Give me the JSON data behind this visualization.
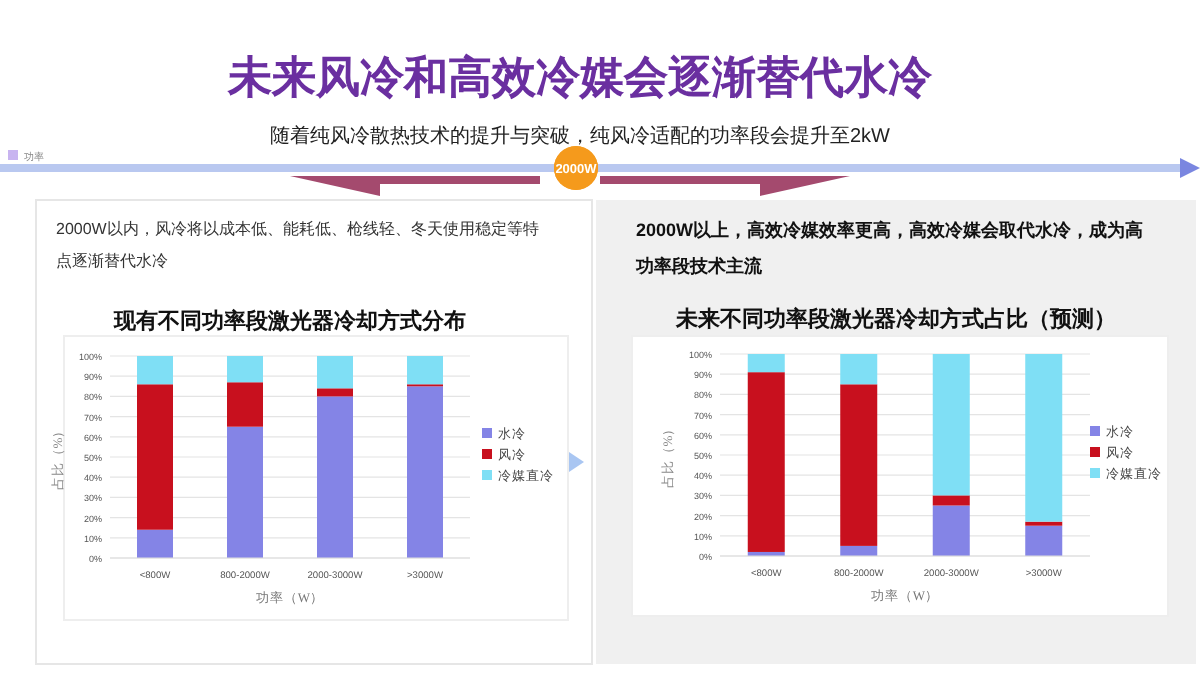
{
  "chart_data": [
    {
      "type": "other",
      "title": "未来风冷和高效冷媒会逐渐替代水冷",
      "subtitle": "随着纯风冷散热技术的提升与突破，纯风冷适配的功率段会提升至2kW",
      "annotations": [
        "功率",
        "2000W",
        "2000W以内，风冷将以成本低、能耗低、枪线轻、冬天使用稳定等特点逐渐替代水冷",
        "2000W以上，高效冷媒效率更高，高效冷媒会取代水冷，成为高功率段技术主流"
      ]
    },
    {
      "type": "bar",
      "stacked": true,
      "title": "现有不同功率段激光器冷却方式分布",
      "categories": [
        "<800W",
        "800-2000W",
        "2000-3000W",
        ">3000W"
      ],
      "series": [
        {
          "name": "水冷",
          "color": "#8484e6",
          "values": [
            14,
            65,
            80,
            85
          ]
        },
        {
          "name": "风冷",
          "color": "#c8101e",
          "values": [
            72,
            22,
            4,
            1
          ]
        },
        {
          "name": "冷媒直冷",
          "color": "#7fdff5",
          "values": [
            14,
            13,
            16,
            14
          ]
        }
      ],
      "xlabel": "功率（W）",
      "ylabel": "占比（%）",
      "ylim": [
        0,
        100
      ],
      "yticks": [
        {
          "value": 0,
          "label": "0%"
        },
        {
          "value": 10,
          "label": "10%"
        },
        {
          "value": 20,
          "label": "20%"
        },
        {
          "value": 30,
          "label": "30%"
        },
        {
          "value": 40,
          "label": "40%"
        },
        {
          "value": 50,
          "label": "50%"
        },
        {
          "value": 60,
          "label": "60%"
        },
        {
          "value": 70,
          "label": "70%"
        },
        {
          "value": 80,
          "label": "80%"
        },
        {
          "value": 90,
          "label": "90%"
        },
        {
          "value": 100,
          "label": "100%"
        }
      ],
      "grid": "y",
      "legend": "right"
    },
    {
      "type": "bar",
      "stacked": true,
      "title": "未来不同功率段激光器冷却方式占比（预测）",
      "categories": [
        "<800W",
        "800-2000W",
        "2000-3000W",
        ">3000W"
      ],
      "series": [
        {
          "name": "水冷",
          "color": "#8484e6",
          "values": [
            2,
            5,
            25,
            15
          ]
        },
        {
          "name": "风冷",
          "color": "#c8101e",
          "values": [
            89,
            80,
            5,
            2
          ]
        },
        {
          "name": "冷媒直冷",
          "color": "#7fdff5",
          "values": [
            9,
            15,
            70,
            83
          ]
        }
      ],
      "xlabel": "功率（W）",
      "ylabel": "占比（%）",
      "ylim": [
        0,
        100
      ],
      "yticks": [
        {
          "value": 0,
          "label": "0%"
        },
        {
          "value": 10,
          "label": "10%"
        },
        {
          "value": 20,
          "label": "20%"
        },
        {
          "value": 30,
          "label": "30%"
        },
        {
          "value": 40,
          "label": "40%"
        },
        {
          "value": 50,
          "label": "50%"
        },
        {
          "value": 60,
          "label": "60%"
        },
        {
          "value": 70,
          "label": "70%"
        },
        {
          "value": 80,
          "label": "80%"
        },
        {
          "value": 90,
          "label": "90%"
        },
        {
          "value": 100,
          "label": "100%"
        }
      ],
      "grid": "y",
      "legend": "right"
    }
  ]
}
